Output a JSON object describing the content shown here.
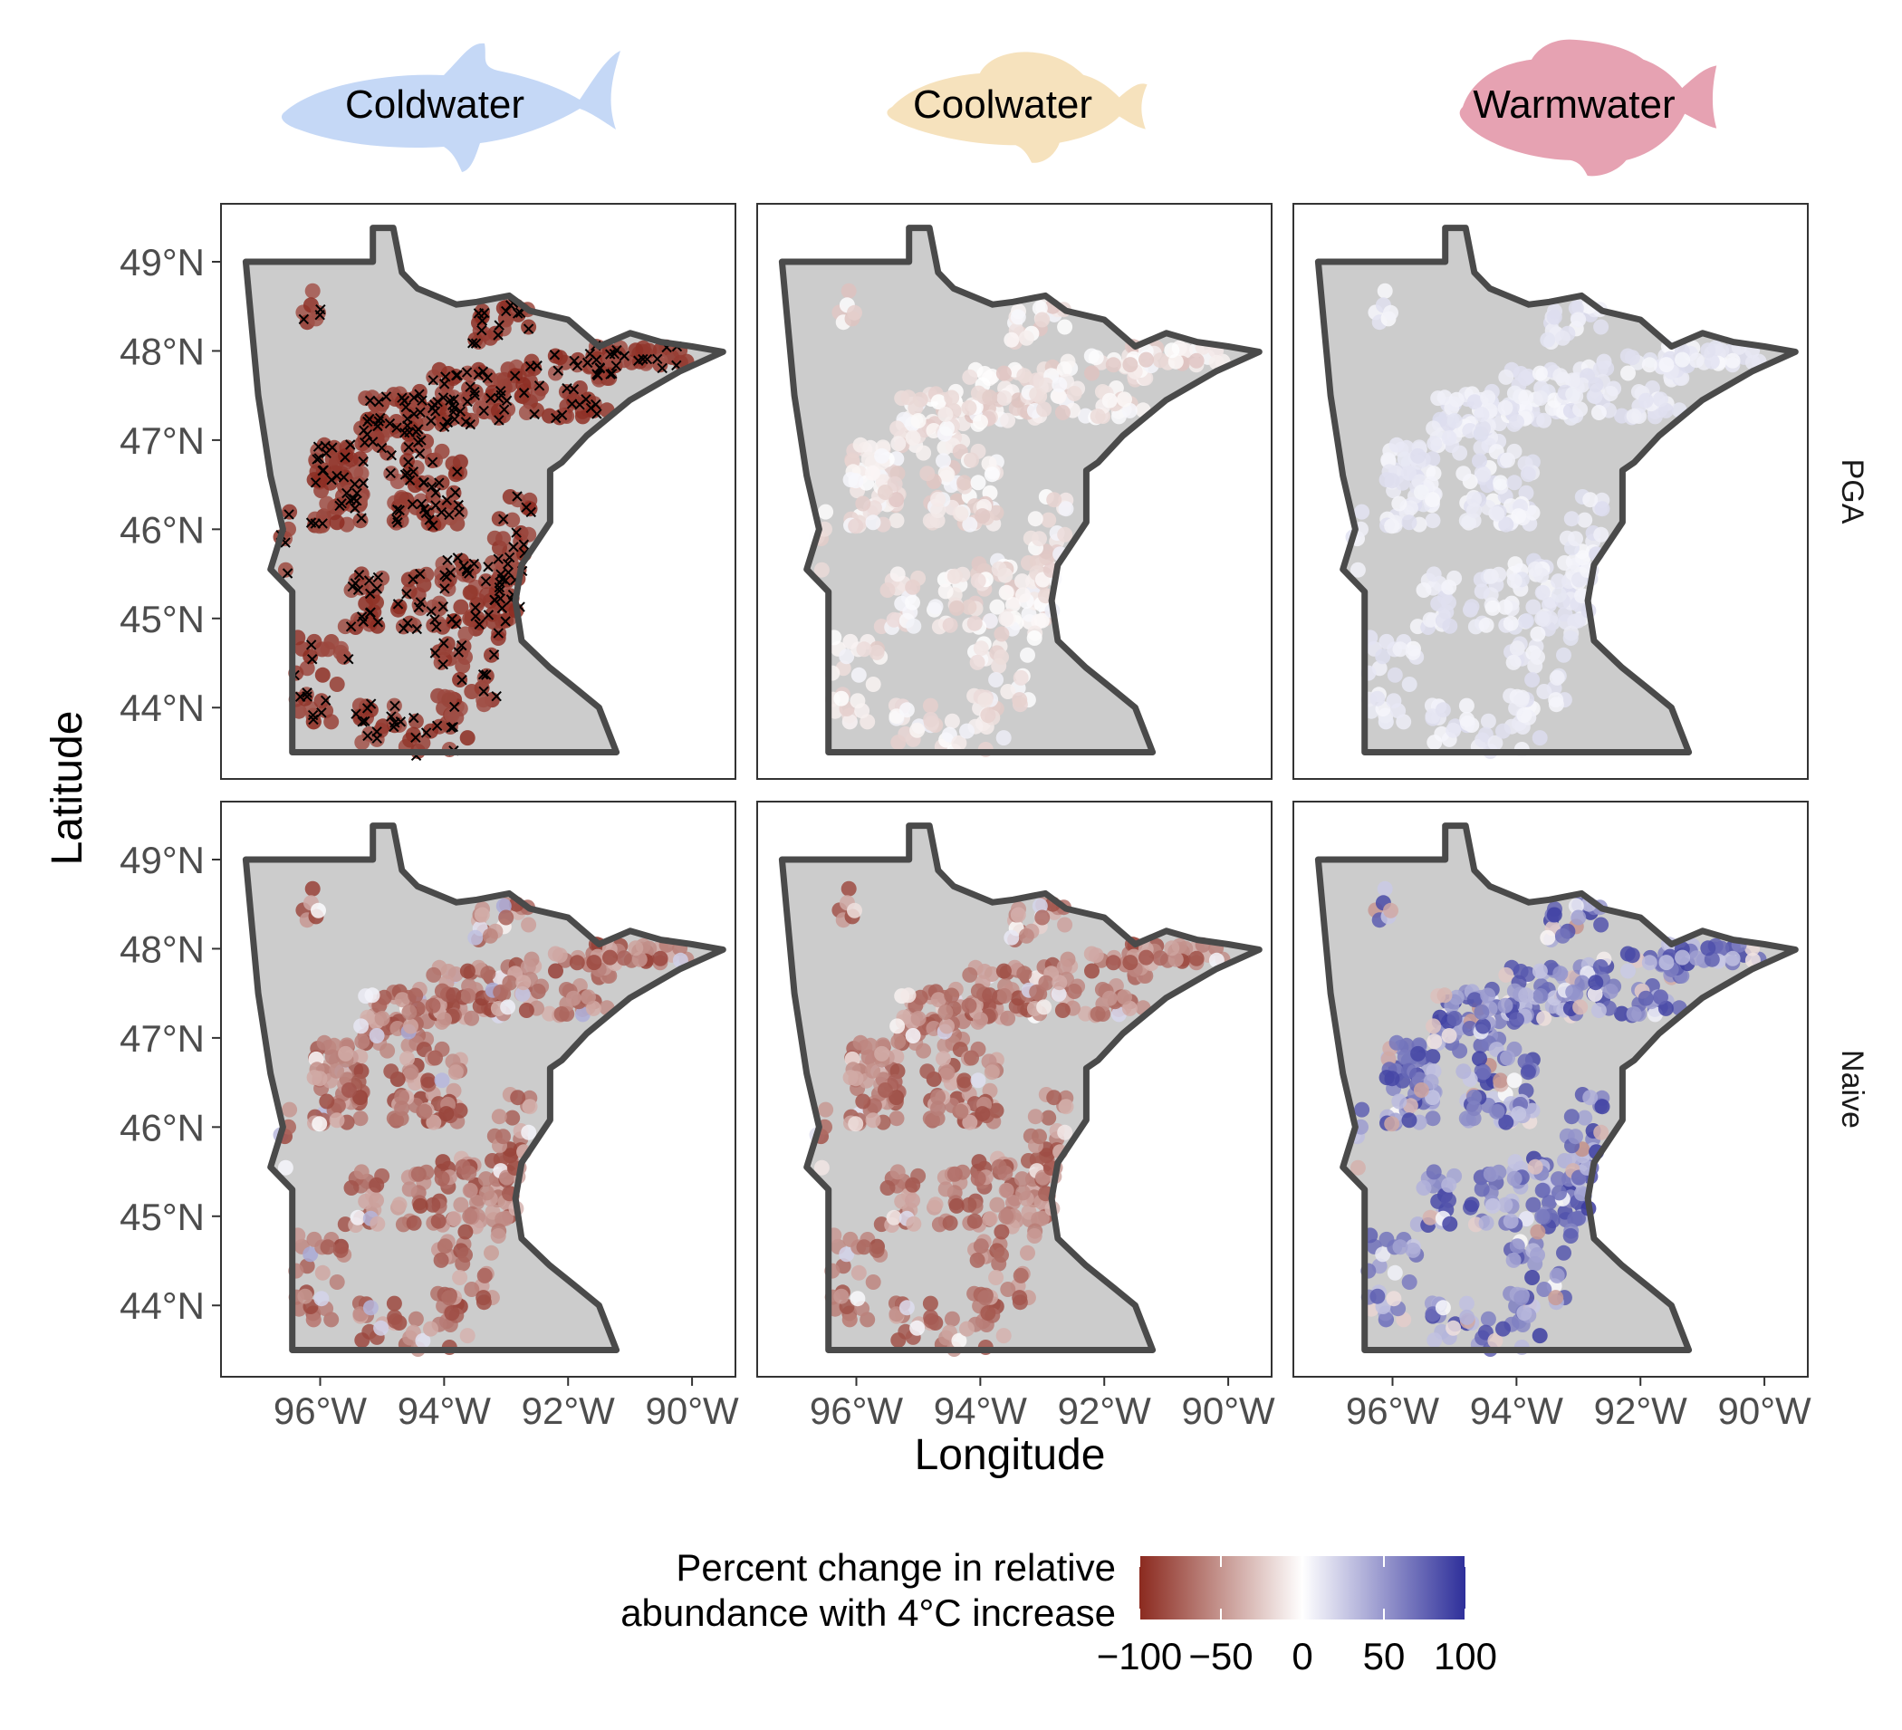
{
  "chart_data": {
    "type": "scatter",
    "title": "",
    "xlabel": "Longitude",
    "ylabel": "Latitude",
    "columns": [
      {
        "name": "Coldwater",
        "color": "#c5d8f6"
      },
      {
        "name": "Coolwater",
        "color": "#f6e2bd"
      },
      {
        "name": "Warmwater",
        "color": "#e6a2b2"
      }
    ],
    "rows": [
      "PGA",
      "Naive"
    ],
    "x_ticks": [
      "96°W",
      "94°W",
      "92°W",
      "90°W"
    ],
    "x_tick_values": [
      -96,
      -94,
      -92,
      -90
    ],
    "y_ticks": [
      "44°N",
      "45°N",
      "46°N",
      "47°N",
      "48°N",
      "49°N"
    ],
    "y_tick_values": [
      44,
      45,
      46,
      47,
      48,
      49
    ],
    "xlim": [
      -97.6,
      -89.3
    ],
    "ylim": [
      43.2,
      49.65
    ],
    "state_outline": [
      [
        -97.2,
        49.0
      ],
      [
        -95.15,
        49.0
      ],
      [
        -95.15,
        49.38
      ],
      [
        -94.82,
        49.38
      ],
      [
        -94.68,
        48.88
      ],
      [
        -94.43,
        48.7
      ],
      [
        -93.8,
        48.52
      ],
      [
        -93.47,
        48.55
      ],
      [
        -92.95,
        48.62
      ],
      [
        -92.62,
        48.45
      ],
      [
        -92.0,
        48.35
      ],
      [
        -91.5,
        48.05
      ],
      [
        -91.0,
        48.2
      ],
      [
        -90.5,
        48.1
      ],
      [
        -90.0,
        48.05
      ],
      [
        -89.5,
        47.99
      ],
      [
        -90.2,
        47.77
      ],
      [
        -91.0,
        47.45
      ],
      [
        -91.7,
        47.05
      ],
      [
        -92.1,
        46.75
      ],
      [
        -92.29,
        46.66
      ],
      [
        -92.29,
        46.08
      ],
      [
        -92.75,
        45.6
      ],
      [
        -92.85,
        45.2
      ],
      [
        -92.75,
        44.75
      ],
      [
        -92.3,
        44.45
      ],
      [
        -91.85,
        44.2
      ],
      [
        -91.5,
        44.0
      ],
      [
        -91.22,
        43.5
      ],
      [
        -96.45,
        43.5
      ],
      [
        -96.45,
        45.3
      ],
      [
        -96.8,
        45.55
      ],
      [
        -96.6,
        46.0
      ],
      [
        -96.8,
        46.6
      ],
      [
        -97.0,
        47.5
      ],
      [
        -97.1,
        48.25
      ],
      [
        -97.2,
        49.0
      ]
    ],
    "series": [
      {
        "name": "Coldwater",
        "row": "PGA",
        "values": [
          {
            "lon": -96.6,
            "lat": 48.72,
            "pct": -85
          },
          {
            "lon": -95.5,
            "lat": 48.62,
            "pct": -80
          },
          {
            "lon": -93.8,
            "lat": 47.6,
            "pct": -88
          },
          {
            "lon": -93.5,
            "lat": 47.4,
            "pct": -90
          },
          {
            "lon": -94.6,
            "lat": 47.1,
            "pct": -92
          },
          {
            "lon": -94.9,
            "lat": 47.0,
            "pct": -85
          },
          {
            "lon": -95.8,
            "lat": 46.6,
            "pct": -90
          },
          {
            "lon": -95.6,
            "lat": 46.2,
            "pct": -88
          },
          {
            "lon": -94.2,
            "lat": 46.6,
            "pct": -85
          },
          {
            "lon": -93.2,
            "lat": 45.3,
            "pct": -90
          },
          {
            "lon": -93.4,
            "lat": 44.3,
            "pct": -80
          },
          {
            "lon": -95.3,
            "lat": 43.7,
            "pct": -85
          },
          {
            "lon": -92.3,
            "lat": 47.8,
            "pct": -88
          },
          {
            "lon": -91.2,
            "lat": 47.9,
            "pct": -85
          },
          {
            "lon": -92.7,
            "lat": 46.1,
            "pct": -80
          },
          {
            "lon": -94.1,
            "lat": 45.4,
            "pct": -88
          }
        ]
      },
      {
        "name": "Coolwater",
        "row": "PGA",
        "values": [
          {
            "lon": -96.6,
            "lat": 48.72,
            "pct": 5
          },
          {
            "lon": -95.5,
            "lat": 48.62,
            "pct": 2
          },
          {
            "lon": -93.8,
            "lat": 47.6,
            "pct": -15
          },
          {
            "lon": -94.6,
            "lat": 47.1,
            "pct": 3
          },
          {
            "lon": -95.8,
            "lat": 46.6,
            "pct": -18
          },
          {
            "lon": -95.6,
            "lat": 46.2,
            "pct": -12
          },
          {
            "lon": -93.2,
            "lat": 45.3,
            "pct": -20
          },
          {
            "lon": -92.3,
            "lat": 47.8,
            "pct": -22
          },
          {
            "lon": -91.2,
            "lat": 47.9,
            "pct": -18
          },
          {
            "lon": -94.1,
            "lat": 45.4,
            "pct": 8
          }
        ]
      },
      {
        "name": "Warmwater",
        "row": "PGA",
        "values": [
          {
            "lon": -96.6,
            "lat": 48.72,
            "pct": 8
          },
          {
            "lon": -95.5,
            "lat": 48.62,
            "pct": 10
          },
          {
            "lon": -93.8,
            "lat": 47.6,
            "pct": 5
          },
          {
            "lon": -94.6,
            "lat": 47.1,
            "pct": 12
          },
          {
            "lon": -95.8,
            "lat": 46.6,
            "pct": 10
          },
          {
            "lon": -93.2,
            "lat": 45.3,
            "pct": 6
          },
          {
            "lon": -92.3,
            "lat": 47.8,
            "pct": 8
          },
          {
            "lon": -94.1,
            "lat": 45.4,
            "pct": 7
          }
        ]
      },
      {
        "name": "Coldwater",
        "row": "Naive",
        "values": [
          {
            "lon": -96.6,
            "lat": 48.72,
            "pct": -40
          },
          {
            "lon": -95.5,
            "lat": 48.62,
            "pct": -45
          },
          {
            "lon": -93.8,
            "lat": 47.6,
            "pct": -70
          },
          {
            "lon": -94.6,
            "lat": 47.1,
            "pct": -25
          },
          {
            "lon": -95.8,
            "lat": 46.6,
            "pct": -65
          },
          {
            "lon": -95.6,
            "lat": 46.2,
            "pct": -15
          },
          {
            "lon": -93.2,
            "lat": 45.3,
            "pct": -5
          },
          {
            "lon": -92.3,
            "lat": 47.8,
            "pct": -75
          },
          {
            "lon": -91.2,
            "lat": 47.9,
            "pct": -78
          },
          {
            "lon": -94.1,
            "lat": 45.4,
            "pct": -60
          }
        ]
      },
      {
        "name": "Coolwater",
        "row": "Naive",
        "values": [
          {
            "lon": -96.6,
            "lat": 48.72,
            "pct": -40
          },
          {
            "lon": -95.5,
            "lat": 48.62,
            "pct": -35
          },
          {
            "lon": -93.8,
            "lat": 47.6,
            "pct": -60
          },
          {
            "lon": -94.6,
            "lat": 47.1,
            "pct": -20
          },
          {
            "lon": -95.8,
            "lat": 46.6,
            "pct": -55
          },
          {
            "lon": -95.6,
            "lat": 46.2,
            "pct": -10
          },
          {
            "lon": -93.2,
            "lat": 45.3,
            "pct": -8
          },
          {
            "lon": -92.3,
            "lat": 47.8,
            "pct": -65
          },
          {
            "lon": -91.2,
            "lat": 47.9,
            "pct": -70
          },
          {
            "lon": -94.1,
            "lat": 45.4,
            "pct": -50
          }
        ]
      },
      {
        "name": "Warmwater",
        "row": "Naive",
        "values": [
          {
            "lon": -96.6,
            "lat": 48.72,
            "pct": 15
          },
          {
            "lon": -95.5,
            "lat": 48.62,
            "pct": 20
          },
          {
            "lon": -93.8,
            "lat": 47.6,
            "pct": 60
          },
          {
            "lon": -94.6,
            "lat": 47.1,
            "pct": 10
          },
          {
            "lon": -95.8,
            "lat": 46.6,
            "pct": 55
          },
          {
            "lon": -95.6,
            "lat": 46.2,
            "pct": 5
          },
          {
            "lon": -93.2,
            "lat": 45.3,
            "pct": -5
          },
          {
            "lon": -92.3,
            "lat": 47.8,
            "pct": 75
          },
          {
            "lon": -91.2,
            "lat": 47.9,
            "pct": 80
          },
          {
            "lon": -94.1,
            "lat": 45.4,
            "pct": 45
          }
        ]
      }
    ],
    "absence_marker": "x",
    "legend": {
      "title_lines": [
        "Percent change in relative",
        "abundance with 4°C increase"
      ],
      "ticks": [
        "−100",
        "−50",
        "0",
        "50",
        "100"
      ],
      "tick_values": [
        -100,
        -50,
        0,
        50,
        100
      ],
      "low_color": "#8b2a1f",
      "mid_color": "#ffffff",
      "high_color": "#2e2f9a",
      "placement": "bottom"
    },
    "grid": false
  }
}
